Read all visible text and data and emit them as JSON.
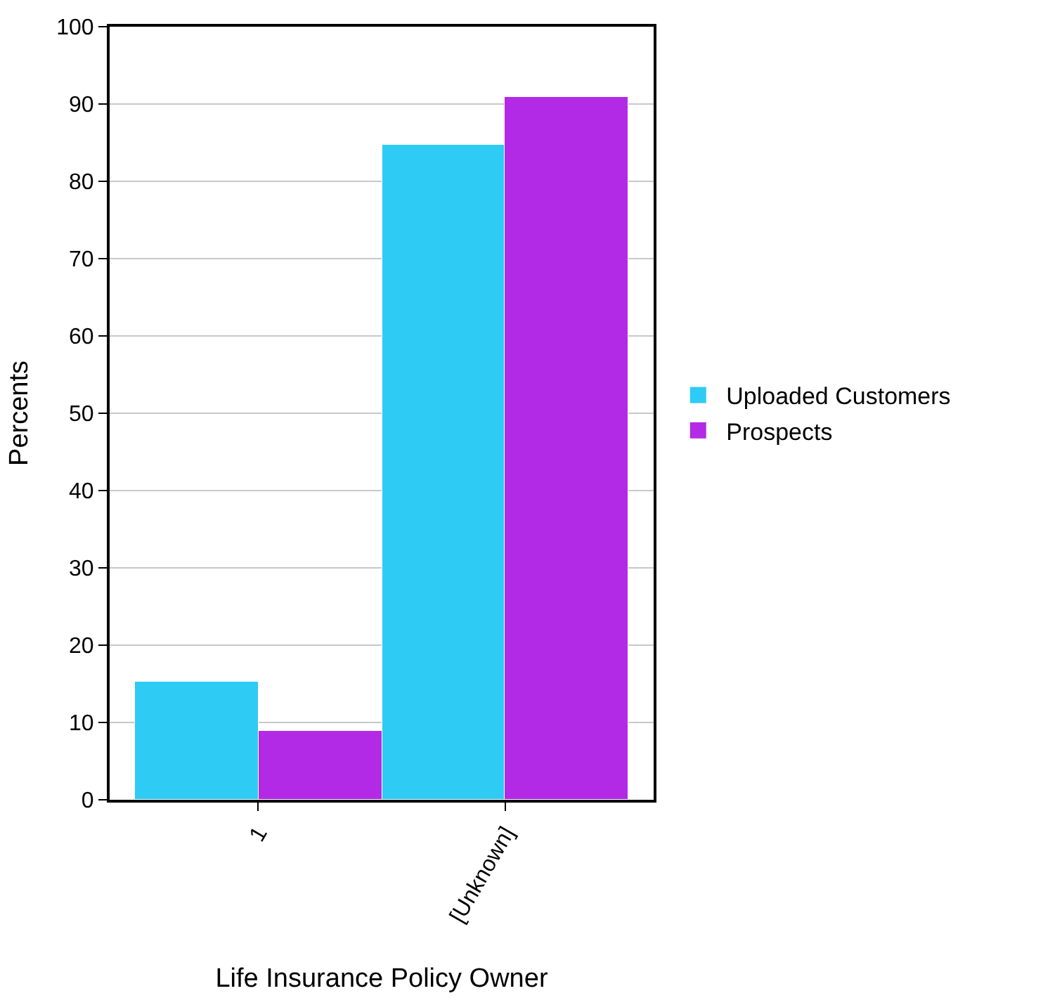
{
  "chart_data": {
    "type": "bar",
    "xlabel": "Life Insurance Policy Owner",
    "ylabel": "Percents",
    "categories": [
      "1",
      "[Unknown]"
    ],
    "series": [
      {
        "name": "Uploaded Customers",
        "color": "#2ecbf5",
        "values": [
          15.2,
          84.8
        ]
      },
      {
        "name": "Prospects",
        "color": "#b22ae6",
        "values": [
          9.0,
          91.0
        ]
      }
    ],
    "ylim": [
      0,
      100
    ],
    "yticks": [
      0,
      10,
      20,
      30,
      40,
      50,
      60,
      70,
      80,
      90,
      100
    ],
    "grid": "y",
    "legend": "right"
  }
}
